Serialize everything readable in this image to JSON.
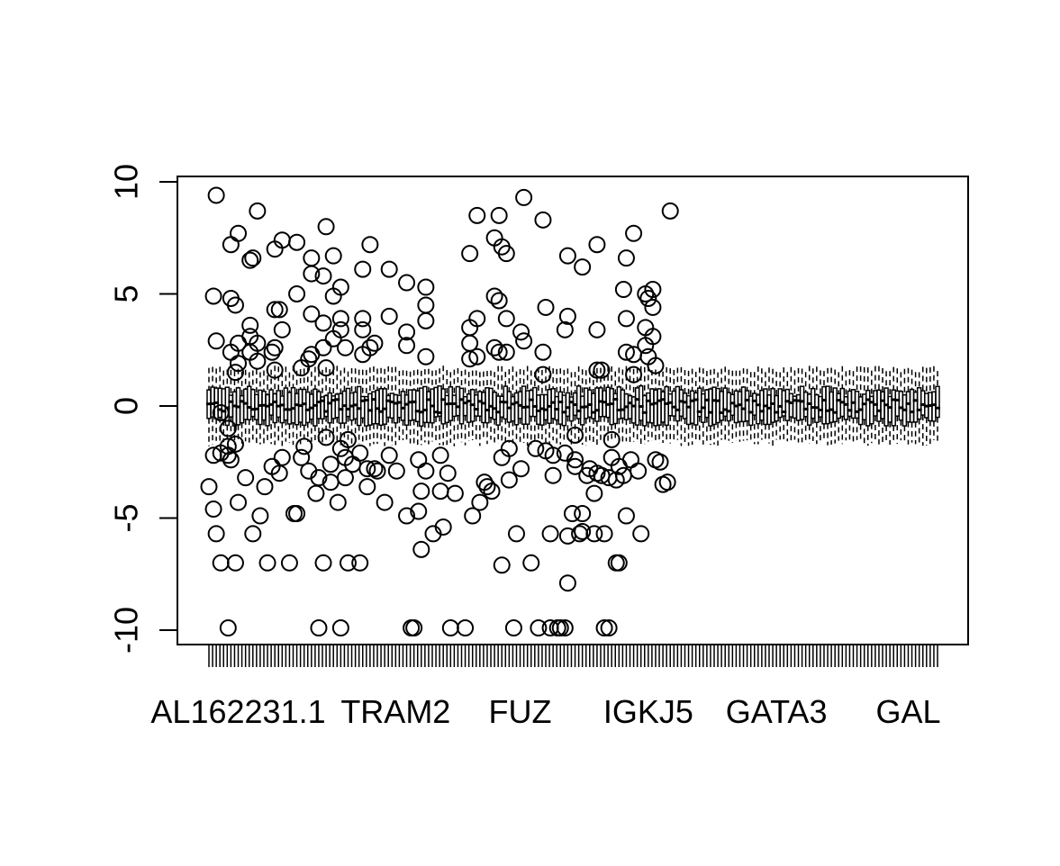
{
  "chart_data": {
    "type": "boxplot",
    "title": "",
    "xlabel": "",
    "ylabel": "",
    "ylim": [
      -10.7,
      10.3
    ],
    "y_ticks": [
      10,
      5,
      0,
      -5,
      -10
    ],
    "y_tick_labels": [
      "10",
      "5",
      "0",
      "-5",
      "-10"
    ],
    "x_labels_shown": [
      "AL162231.1",
      "TRAM2",
      "FUZ",
      "IGKJ5",
      "GATA3",
      "GAL"
    ],
    "x_label_positions": [
      9,
      52,
      86,
      121,
      156,
      192
    ],
    "n_categories": 200,
    "box_stats": {
      "median_range": [
        -0.3,
        0.3
      ],
      "q1_approx": -0.4,
      "q3_approx": 0.4,
      "whisker_low_approx": -1.5,
      "whisker_high_approx": 1.5
    },
    "outliers": [
      [
        1,
        -3.6
      ],
      [
        2,
        4.9
      ],
      [
        2,
        -4.6
      ],
      [
        2,
        -2.2
      ],
      [
        3,
        -5.7
      ],
      [
        3,
        9.4
      ],
      [
        3,
        2.9
      ],
      [
        4,
        -7.0
      ],
      [
        4,
        -2.1
      ],
      [
        4,
        -0.3
      ],
      [
        6,
        -9.9
      ],
      [
        6,
        -2.2
      ],
      [
        6,
        -1.8
      ],
      [
        6,
        -1.0
      ],
      [
        7,
        7.2
      ],
      [
        7,
        4.8
      ],
      [
        7,
        2.4
      ],
      [
        7,
        -2.4
      ],
      [
        8,
        4.5
      ],
      [
        8,
        1.5
      ],
      [
        8,
        -7.0
      ],
      [
        8,
        -1.7
      ],
      [
        9,
        7.7
      ],
      [
        9,
        2.8
      ],
      [
        9,
        1.9
      ],
      [
        9,
        -4.3
      ],
      [
        11,
        -3.2
      ],
      [
        12,
        6.5
      ],
      [
        12,
        3.6
      ],
      [
        12,
        3.1
      ],
      [
        12,
        2.4
      ],
      [
        13,
        6.6
      ],
      [
        13,
        -5.7
      ],
      [
        14,
        8.7
      ],
      [
        14,
        2.8
      ],
      [
        14,
        2.0
      ],
      [
        15,
        -4.9
      ],
      [
        16,
        -3.6
      ],
      [
        17,
        -7.0
      ],
      [
        18,
        -2.7
      ],
      [
        18,
        2.4
      ],
      [
        19,
        7.0
      ],
      [
        19,
        4.3
      ],
      [
        19,
        2.6
      ],
      [
        19,
        1.6
      ],
      [
        20,
        4.3
      ],
      [
        20,
        -3.0
      ],
      [
        21,
        7.4
      ],
      [
        21,
        3.4
      ],
      [
        21,
        -2.3
      ],
      [
        23,
        -7.0
      ],
      [
        24,
        -4.8
      ],
      [
        25,
        7.3
      ],
      [
        25,
        5.0
      ],
      [
        25,
        -4.8
      ],
      [
        26,
        -2.3
      ],
      [
        26,
        1.7
      ],
      [
        27,
        -1.8
      ],
      [
        28,
        2.1
      ],
      [
        28,
        -2.9
      ],
      [
        29,
        6.6
      ],
      [
        29,
        5.9
      ],
      [
        29,
        4.1
      ],
      [
        29,
        2.3
      ],
      [
        30,
        -3.9
      ],
      [
        31,
        -3.2
      ],
      [
        31,
        -9.9
      ],
      [
        32,
        5.8
      ],
      [
        32,
        3.7
      ],
      [
        32,
        2.6
      ],
      [
        32,
        -7.0
      ],
      [
        33,
        8.0
      ],
      [
        33,
        1.7
      ],
      [
        33,
        -1.4
      ],
      [
        34,
        -3.4
      ],
      [
        34,
        -2.6
      ],
      [
        35,
        6.7
      ],
      [
        35,
        4.9
      ],
      [
        35,
        3.0
      ],
      [
        36,
        -4.3
      ],
      [
        37,
        5.3
      ],
      [
        37,
        3.9
      ],
      [
        37,
        3.4
      ],
      [
        37,
        -1.9
      ],
      [
        37,
        -9.9
      ],
      [
        38,
        2.6
      ],
      [
        38,
        -3.2
      ],
      [
        38,
        -2.3
      ],
      [
        39,
        -7.0
      ],
      [
        39,
        -1.5
      ],
      [
        40,
        -2.6
      ],
      [
        42,
        -7.0
      ],
      [
        42,
        -2.1
      ],
      [
        43,
        6.1
      ],
      [
        43,
        3.9
      ],
      [
        43,
        3.4
      ],
      [
        43,
        2.3
      ],
      [
        44,
        -3.6
      ],
      [
        44,
        -2.8
      ],
      [
        45,
        7.2
      ],
      [
        45,
        2.6
      ],
      [
        46,
        2.8
      ],
      [
        46,
        -2.8
      ],
      [
        47,
        -2.9
      ],
      [
        49,
        -4.3
      ],
      [
        50,
        6.1
      ],
      [
        50,
        4.0
      ],
      [
        50,
        -2.2
      ],
      [
        52,
        -2.9
      ],
      [
        55,
        5.5
      ],
      [
        55,
        3.3
      ],
      [
        55,
        2.7
      ],
      [
        55,
        -4.9
      ],
      [
        56,
        -9.9
      ],
      [
        57,
        -9.9
      ],
      [
        58,
        -4.7
      ],
      [
        58,
        -2.4
      ],
      [
        59,
        -3.8
      ],
      [
        59,
        -6.4
      ],
      [
        60,
        5.3
      ],
      [
        60,
        4.5
      ],
      [
        60,
        3.8
      ],
      [
        60,
        2.2
      ],
      [
        60,
        -2.9
      ],
      [
        62,
        -5.7
      ],
      [
        64,
        -3.8
      ],
      [
        64,
        -2.2
      ],
      [
        65,
        -5.4
      ],
      [
        66,
        -3.0
      ],
      [
        67,
        -9.9
      ],
      [
        68,
        -3.9
      ],
      [
        71,
        -9.9
      ],
      [
        72,
        6.8
      ],
      [
        72,
        3.5
      ],
      [
        72,
        2.8
      ],
      [
        72,
        2.1
      ],
      [
        73,
        -4.9
      ],
      [
        74,
        8.5
      ],
      [
        74,
        3.9
      ],
      [
        74,
        2.2
      ],
      [
        75,
        -4.3
      ],
      [
        76,
        -3.4
      ],
      [
        77,
        -3.6
      ],
      [
        78,
        -3.8
      ],
      [
        79,
        7.5
      ],
      [
        79,
        4.9
      ],
      [
        79,
        2.6
      ],
      [
        80,
        8.5
      ],
      [
        80,
        4.7
      ],
      [
        80,
        2.4
      ],
      [
        81,
        7.1
      ],
      [
        81,
        -2.3
      ],
      [
        81,
        -7.1
      ],
      [
        82,
        6.8
      ],
      [
        82,
        3.9
      ],
      [
        82,
        2.4
      ],
      [
        83,
        -3.3
      ],
      [
        83,
        -1.9
      ],
      [
        84,
        -9.9
      ],
      [
        85,
        -5.7
      ],
      [
        86,
        3.3
      ],
      [
        86,
        -2.8
      ],
      [
        87,
        9.3
      ],
      [
        87,
        2.9
      ],
      [
        89,
        -7.0
      ],
      [
        90,
        -1.9
      ],
      [
        91,
        -9.9
      ],
      [
        92,
        8.3
      ],
      [
        92,
        2.4
      ],
      [
        92,
        1.4
      ],
      [
        93,
        4.4
      ],
      [
        93,
        -2.0
      ],
      [
        94,
        -5.7
      ],
      [
        94,
        -9.9
      ],
      [
        95,
        -2.2
      ],
      [
        95,
        -3.1
      ],
      [
        96,
        -9.9
      ],
      [
        97,
        -9.9
      ],
      [
        98,
        -2.1
      ],
      [
        98,
        3.4
      ],
      [
        98,
        -9.9
      ],
      [
        99,
        6.7
      ],
      [
        99,
        4.0
      ],
      [
        99,
        -5.8
      ],
      [
        99,
        -7.9
      ],
      [
        100,
        -4.8
      ],
      [
        101,
        -2.4
      ],
      [
        101,
        -2.7
      ],
      [
        101,
        -1.3
      ],
      [
        102,
        -5.7
      ],
      [
        103,
        6.2
      ],
      [
        103,
        -5.6
      ],
      [
        103,
        -4.8
      ],
      [
        104,
        -3.1
      ],
      [
        105,
        -2.8
      ],
      [
        106,
        -3.9
      ],
      [
        106,
        -5.7
      ],
      [
        107,
        7.2
      ],
      [
        107,
        3.4
      ],
      [
        107,
        1.6
      ],
      [
        107,
        -3.0
      ],
      [
        108,
        1.6
      ],
      [
        108,
        -3.1
      ],
      [
        109,
        -5.7
      ],
      [
        109,
        -9.9
      ],
      [
        110,
        -3.2
      ],
      [
        110,
        -9.9
      ],
      [
        111,
        -1.5
      ],
      [
        111,
        -2.3
      ],
      [
        112,
        -7.0
      ],
      [
        112,
        -3.3
      ],
      [
        113,
        -7.0
      ],
      [
        113,
        -2.7
      ],
      [
        114,
        5.2
      ],
      [
        114,
        -3.1
      ],
      [
        115,
        6.6
      ],
      [
        115,
        3.9
      ],
      [
        115,
        2.4
      ],
      [
        115,
        -4.9
      ],
      [
        116,
        -2.4
      ],
      [
        117,
        7.7
      ],
      [
        117,
        2.3
      ],
      [
        117,
        1.4
      ],
      [
        118,
        -2.9
      ],
      [
        119,
        -5.7
      ],
      [
        120,
        5.0
      ],
      [
        120,
        3.5
      ],
      [
        120,
        2.7
      ],
      [
        121,
        4.8
      ],
      [
        121,
        2.2
      ],
      [
        122,
        5.2
      ],
      [
        122,
        4.4
      ],
      [
        122,
        3.1
      ],
      [
        123,
        1.8
      ],
      [
        123,
        -2.4
      ],
      [
        124,
        -2.5
      ],
      [
        125,
        -3.5
      ],
      [
        126,
        -3.4
      ],
      [
        127,
        8.7
      ]
    ]
  }
}
